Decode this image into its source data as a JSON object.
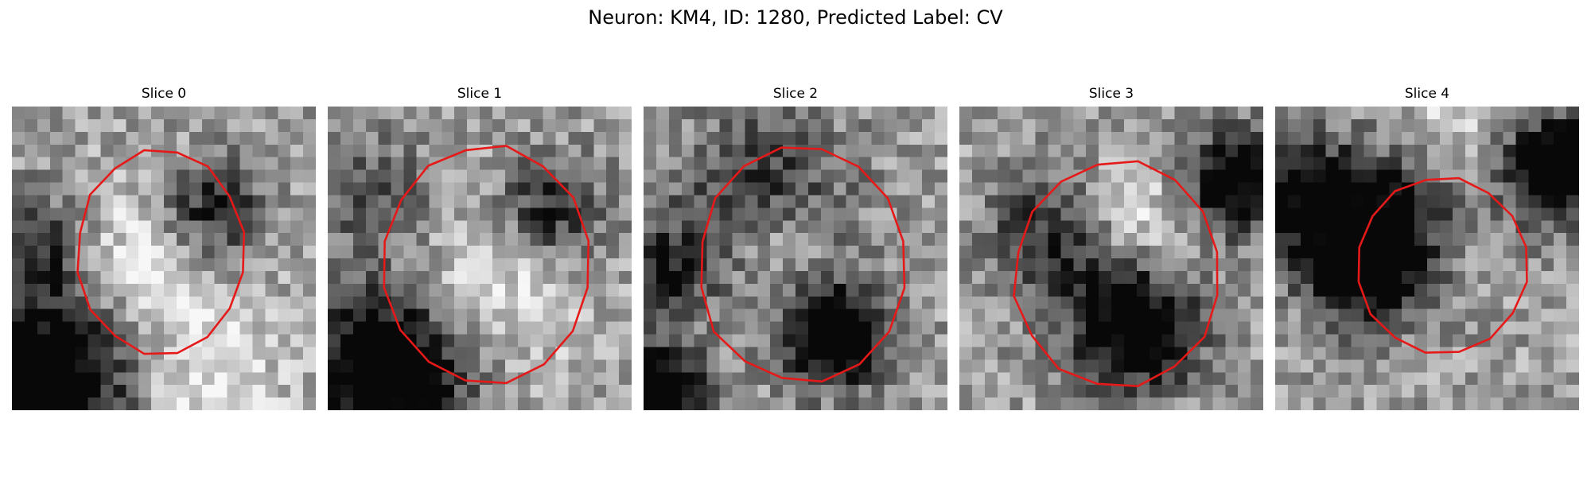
{
  "figure": {
    "title": "Neuron: KM4, ID: 1280, Predicted Label: CV",
    "contour_color": "#e61919",
    "colormap": "gray"
  },
  "panels": [
    {
      "title": "Slice 0",
      "seed": 11,
      "contour_center": [
        0.49,
        0.48
      ],
      "contour_radii": [
        0.55,
        0.67
      ],
      "dark_patches": [
        [
          0.1,
          0.92,
          0.22,
          0.95
        ],
        [
          0.65,
          0.35,
          0.12,
          0.6
        ],
        [
          0.1,
          0.45,
          0.12,
          0.4
        ]
      ],
      "light_patches": [
        [
          0.45,
          0.5,
          0.18,
          0.7
        ],
        [
          0.6,
          0.93,
          0.2,
          0.6
        ]
      ]
    },
    {
      "title": "Slice 1",
      "seed": 23,
      "contour_center": [
        0.52,
        0.52
      ],
      "contour_radii": [
        0.68,
        0.78
      ],
      "dark_patches": [
        [
          0.2,
          0.87,
          0.18,
          0.95
        ],
        [
          0.73,
          0.34,
          0.12,
          0.55
        ],
        [
          0.15,
          0.3,
          0.15,
          0.3
        ]
      ],
      "light_patches": [
        [
          0.55,
          0.58,
          0.2,
          0.6
        ]
      ]
    },
    {
      "title": "Slice 2",
      "seed": 37,
      "contour_center": [
        0.52,
        0.52
      ],
      "contour_radii": [
        0.68,
        0.78
      ],
      "dark_patches": [
        [
          0.63,
          0.75,
          0.12,
          0.9
        ],
        [
          0.05,
          0.93,
          0.1,
          0.9
        ],
        [
          0.05,
          0.55,
          0.12,
          0.5
        ],
        [
          0.4,
          0.3,
          0.2,
          0.45
        ]
      ],
      "light_patches": [
        [
          0.45,
          0.45,
          0.12,
          0.6
        ]
      ]
    },
    {
      "title": "Slice 3",
      "seed": 53,
      "contour_center": [
        0.52,
        0.55
      ],
      "contour_radii": [
        0.68,
        0.74
      ],
      "dark_patches": [
        [
          0.58,
          0.72,
          0.15,
          0.85
        ],
        [
          0.9,
          0.25,
          0.12,
          0.8
        ],
        [
          0.3,
          0.42,
          0.15,
          0.45
        ]
      ],
      "light_patches": [
        [
          0.6,
          0.38,
          0.15,
          0.6
        ]
      ]
    },
    {
      "title": "Slice 4",
      "seed": 71,
      "contour_center": [
        0.55,
        0.52
      ],
      "contour_radii": [
        0.56,
        0.58
      ],
      "dark_patches": [
        [
          0.93,
          0.2,
          0.12,
          0.95
        ],
        [
          0.4,
          0.38,
          0.18,
          0.7
        ],
        [
          0.28,
          0.55,
          0.12,
          0.55
        ],
        [
          0.05,
          0.3,
          0.15,
          0.6
        ]
      ],
      "light_patches": [
        [
          0.6,
          0.45,
          0.1,
          0.5
        ],
        [
          0.55,
          0.1,
          0.15,
          0.5
        ]
      ]
    }
  ]
}
